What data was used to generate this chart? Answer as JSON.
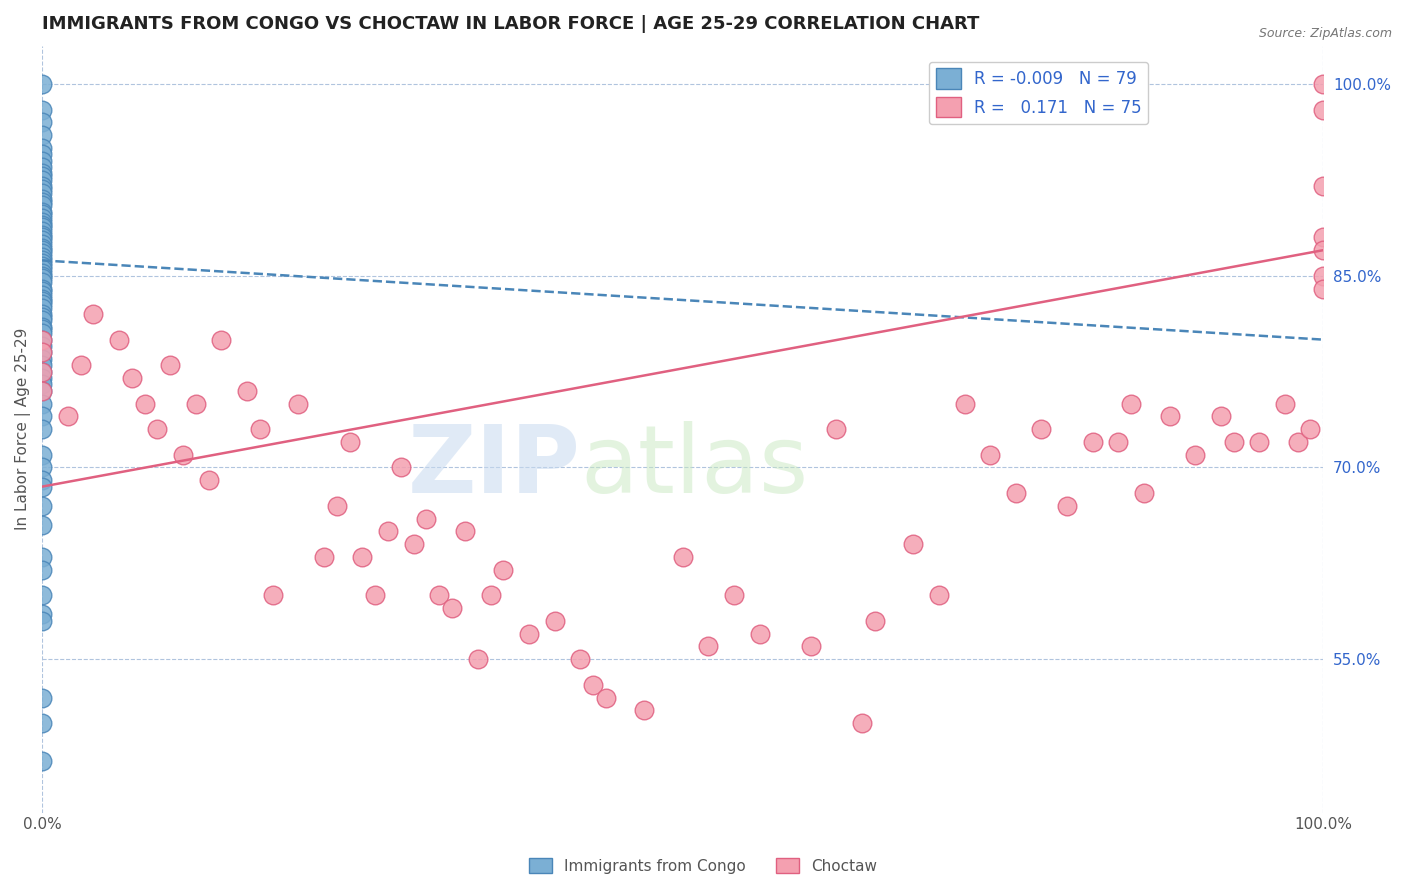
{
  "title": "IMMIGRANTS FROM CONGO VS CHOCTAW IN LABOR FORCE | AGE 25-29 CORRELATION CHART",
  "source": "Source: ZipAtlas.com",
  "ylabel": "In Labor Force | Age 25-29",
  "xlim": [
    0,
    1
  ],
  "ylim": [
    0.43,
    1.03
  ],
  "xticklabels": [
    "0.0%",
    "100.0%"
  ],
  "yticks_right": [
    0.55,
    0.7,
    0.85,
    1.0
  ],
  "ytick_labels_right": [
    "55.0%",
    "70.0%",
    "85.0%",
    "100.0%"
  ],
  "grid_color": "#b0c4de",
  "background_color": "#ffffff",
  "congo_color": "#7bafd4",
  "congo_edge_color": "#4a86b8",
  "choctaw_color": "#f4a0b0",
  "choctaw_edge_color": "#e06080",
  "congo_R": -0.009,
  "congo_N": 79,
  "choctaw_R": 0.171,
  "choctaw_N": 75,
  "legend_R_color": "#3366cc",
  "legend_label_congo": "Immigrants from Congo",
  "legend_label_choctaw": "Choctaw",
  "congo_trend_x": [
    0.0,
    1.0
  ],
  "congo_trend_y": [
    0.862,
    0.8
  ],
  "choctaw_trend_x": [
    0.0,
    1.0
  ],
  "choctaw_trend_y": [
    0.685,
    0.87
  ],
  "congo_x": [
    0.0,
    0.0,
    0.0,
    0.0,
    0.0,
    0.0,
    0.0,
    0.0,
    0.0,
    0.0,
    0.0,
    0.0,
    0.0,
    0.0,
    0.0,
    0.0,
    0.0,
    0.0,
    0.0,
    0.0,
    0.0,
    0.0,
    0.0,
    0.0,
    0.0,
    0.0,
    0.0,
    0.0,
    0.0,
    0.0,
    0.0,
    0.0,
    0.0,
    0.0,
    0.0,
    0.0,
    0.0,
    0.0,
    0.0,
    0.0,
    0.0,
    0.0,
    0.0,
    0.0,
    0.0,
    0.0,
    0.0,
    0.0,
    0.0,
    0.0,
    0.0,
    0.0,
    0.0,
    0.0,
    0.0,
    0.0,
    0.0,
    0.0,
    0.0,
    0.0,
    0.0,
    0.0,
    0.0,
    0.0,
    0.0,
    0.0,
    0.0,
    0.0,
    0.0,
    0.0,
    0.0,
    0.0,
    0.0,
    0.0,
    0.0,
    0.0,
    0.0,
    0.0,
    0.0
  ],
  "congo_y": [
    1.0,
    0.98,
    0.97,
    0.96,
    0.95,
    0.945,
    0.94,
    0.935,
    0.93,
    0.928,
    0.925,
    0.92,
    0.918,
    0.915,
    0.91,
    0.908,
    0.905,
    0.9,
    0.898,
    0.895,
    0.892,
    0.89,
    0.888,
    0.885,
    0.882,
    0.88,
    0.878,
    0.875,
    0.872,
    0.87,
    0.868,
    0.865,
    0.862,
    0.86,
    0.858,
    0.855,
    0.852,
    0.85,
    0.848,
    0.845,
    0.84,
    0.838,
    0.835,
    0.832,
    0.83,
    0.828,
    0.825,
    0.82,
    0.818,
    0.815,
    0.81,
    0.808,
    0.805,
    0.8,
    0.795,
    0.79,
    0.785,
    0.78,
    0.775,
    0.77,
    0.765,
    0.76,
    0.75,
    0.74,
    0.73,
    0.71,
    0.7,
    0.69,
    0.685,
    0.67,
    0.655,
    0.63,
    0.62,
    0.6,
    0.585,
    0.58,
    0.52,
    0.5,
    0.47
  ],
  "choctaw_x": [
    0.0,
    0.0,
    0.0,
    0.0,
    0.02,
    0.03,
    0.04,
    0.06,
    0.07,
    0.08,
    0.09,
    0.1,
    0.11,
    0.12,
    0.13,
    0.14,
    0.16,
    0.17,
    0.18,
    0.2,
    0.22,
    0.23,
    0.24,
    0.25,
    0.26,
    0.27,
    0.28,
    0.29,
    0.3,
    0.31,
    0.32,
    0.33,
    0.34,
    0.35,
    0.36,
    0.38,
    0.4,
    0.42,
    0.43,
    0.44,
    0.47,
    0.5,
    0.52,
    0.54,
    0.56,
    0.6,
    0.62,
    0.64,
    0.65,
    0.68,
    0.7,
    0.72,
    0.74,
    0.76,
    0.78,
    0.8,
    0.82,
    0.84,
    0.85,
    0.86,
    0.88,
    0.9,
    0.92,
    0.93,
    0.95,
    0.97,
    0.98,
    0.99,
    1.0,
    1.0,
    1.0,
    1.0,
    1.0,
    1.0,
    1.0
  ],
  "choctaw_y": [
    0.8,
    0.79,
    0.775,
    0.76,
    0.74,
    0.78,
    0.82,
    0.8,
    0.77,
    0.75,
    0.73,
    0.78,
    0.71,
    0.75,
    0.69,
    0.8,
    0.76,
    0.73,
    0.6,
    0.75,
    0.63,
    0.67,
    0.72,
    0.63,
    0.6,
    0.65,
    0.7,
    0.64,
    0.66,
    0.6,
    0.59,
    0.65,
    0.55,
    0.6,
    0.62,
    0.57,
    0.58,
    0.55,
    0.53,
    0.52,
    0.51,
    0.63,
    0.56,
    0.6,
    0.57,
    0.56,
    0.73,
    0.5,
    0.58,
    0.64,
    0.6,
    0.75,
    0.71,
    0.68,
    0.73,
    0.67,
    0.72,
    0.72,
    0.75,
    0.68,
    0.74,
    0.71,
    0.74,
    0.72,
    0.72,
    0.75,
    0.72,
    0.73,
    1.0,
    0.98,
    0.92,
    0.88,
    0.85,
    0.87,
    0.84
  ]
}
